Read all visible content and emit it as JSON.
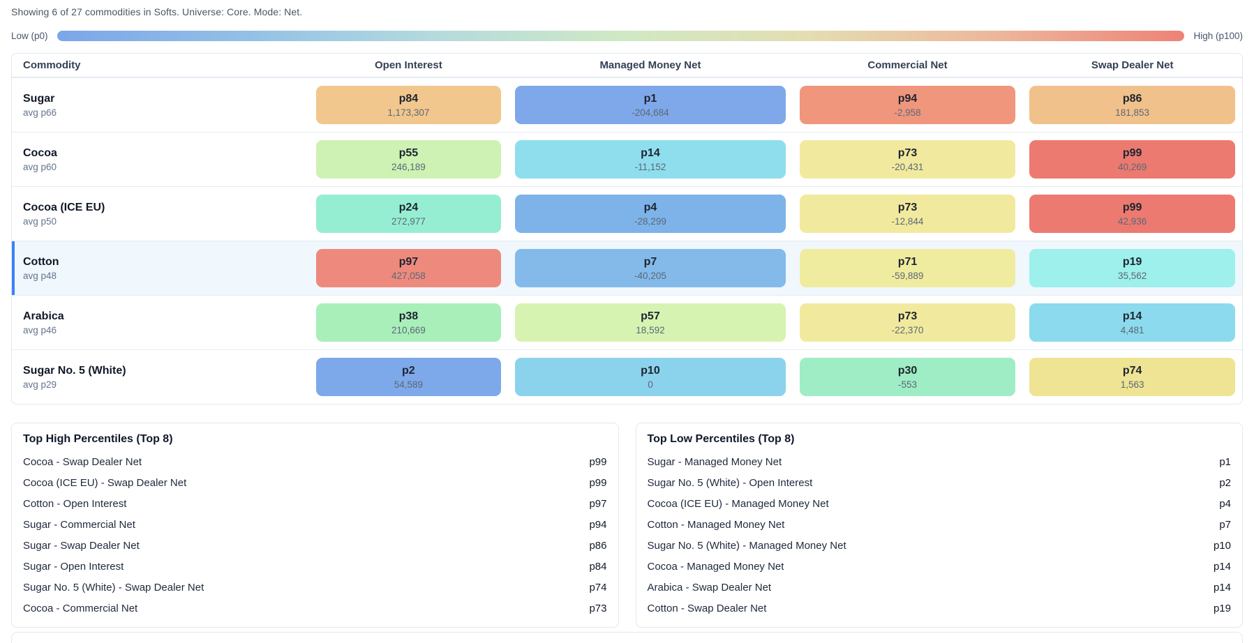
{
  "header": {
    "status_text": "Showing 6 of 27 commodities in Softs. Universe: Core. Mode: Net."
  },
  "legend": {
    "low_label": "Low (p0)",
    "high_label": "High (p100)",
    "gradient": [
      "#7ba6e9",
      "#92c0e6",
      "#b4dade",
      "#cfe9c4",
      "#e4ddb2",
      "#ecb79c",
      "#ee8276"
    ]
  },
  "table": {
    "columns": [
      "Commodity",
      "Open Interest",
      "Managed Money Net",
      "Commercial Net",
      "Swap Dealer Net"
    ],
    "rows": [
      {
        "name": "Sugar",
        "avg": "avg p66",
        "highlighted": false,
        "cells": [
          {
            "percentile": "p84",
            "value": "1,173,307",
            "color": "#f2c78d"
          },
          {
            "percentile": "p1",
            "value": "-204,684",
            "color": "#7ea8e9"
          },
          {
            "percentile": "p94",
            "value": "-2,958",
            "color": "#f0967c"
          },
          {
            "percentile": "p86",
            "value": "181,853",
            "color": "#f1c18b"
          }
        ]
      },
      {
        "name": "Cocoa",
        "avg": "avg p60",
        "highlighted": false,
        "cells": [
          {
            "percentile": "p55",
            "value": "246,189",
            "color": "#cdf2b4"
          },
          {
            "percentile": "p14",
            "value": "-11,152",
            "color": "#8fdeee"
          },
          {
            "percentile": "p73",
            "value": "-20,431",
            "color": "#f1ea9e"
          },
          {
            "percentile": "p99",
            "value": "40,269",
            "color": "#ec7a70"
          }
        ]
      },
      {
        "name": "Cocoa (ICE EU)",
        "avg": "avg p50",
        "highlighted": false,
        "cells": [
          {
            "percentile": "p24",
            "value": "272,977",
            "color": "#96eed2"
          },
          {
            "percentile": "p4",
            "value": "-28,299",
            "color": "#7db3e9"
          },
          {
            "percentile": "p73",
            "value": "-12,844",
            "color": "#f1ea9e"
          },
          {
            "percentile": "p99",
            "value": "42,936",
            "color": "#ec7a70"
          }
        ]
      },
      {
        "name": "Cotton",
        "avg": "avg p48",
        "highlighted": true,
        "cells": [
          {
            "percentile": "p97",
            "value": "427,058",
            "color": "#ee8a7d"
          },
          {
            "percentile": "p7",
            "value": "-40,205",
            "color": "#83bae9"
          },
          {
            "percentile": "p71",
            "value": "-59,889",
            "color": "#f0ec9f"
          },
          {
            "percentile": "p19",
            "value": "35,562",
            "color": "#9df0ec"
          }
        ]
      },
      {
        "name": "Arabica",
        "avg": "avg p46",
        "highlighted": false,
        "cells": [
          {
            "percentile": "p38",
            "value": "210,669",
            "color": "#a9efba"
          },
          {
            "percentile": "p57",
            "value": "18,592",
            "color": "#d7f3b1"
          },
          {
            "percentile": "p73",
            "value": "-22,370",
            "color": "#f1ea9e"
          },
          {
            "percentile": "p14",
            "value": "4,481",
            "color": "#8cdaed"
          }
        ]
      },
      {
        "name": "Sugar No. 5 (White)",
        "avg": "avg p29",
        "highlighted": false,
        "cells": [
          {
            "percentile": "p2",
            "value": "54,589",
            "color": "#7da9ea"
          },
          {
            "percentile": "p10",
            "value": "0",
            "color": "#8bd2ec"
          },
          {
            "percentile": "p30",
            "value": "-553",
            "color": "#9fedc4"
          },
          {
            "percentile": "p74",
            "value": "1,563",
            "color": "#efe493"
          }
        ]
      }
    ]
  },
  "panels": {
    "high": {
      "title": "Top High Percentiles (Top 8)",
      "items": [
        {
          "label": "Cocoa - Swap Dealer Net",
          "value": "p99"
        },
        {
          "label": "Cocoa (ICE EU) - Swap Dealer Net",
          "value": "p99"
        },
        {
          "label": "Cotton - Open Interest",
          "value": "p97"
        },
        {
          "label": "Sugar - Commercial Net",
          "value": "p94"
        },
        {
          "label": "Sugar - Swap Dealer Net",
          "value": "p86"
        },
        {
          "label": "Sugar - Open Interest",
          "value": "p84"
        },
        {
          "label": "Sugar No. 5 (White) - Swap Dealer Net",
          "value": "p74"
        },
        {
          "label": "Cocoa - Commercial Net",
          "value": "p73"
        }
      ]
    },
    "low": {
      "title": "Top Low Percentiles (Top 8)",
      "items": [
        {
          "label": "Sugar - Managed Money Net",
          "value": "p1"
        },
        {
          "label": "Sugar No. 5 (White) - Open Interest",
          "value": "p2"
        },
        {
          "label": "Cocoa (ICE EU) - Managed Money Net",
          "value": "p4"
        },
        {
          "label": "Cotton - Managed Money Net",
          "value": "p7"
        },
        {
          "label": "Sugar No. 5 (White) - Managed Money Net",
          "value": "p10"
        },
        {
          "label": "Cocoa - Managed Money Net",
          "value": "p14"
        },
        {
          "label": "Arabica - Swap Dealer Net",
          "value": "p14"
        },
        {
          "label": "Cotton - Swap Dealer Net",
          "value": "p19"
        }
      ]
    }
  }
}
